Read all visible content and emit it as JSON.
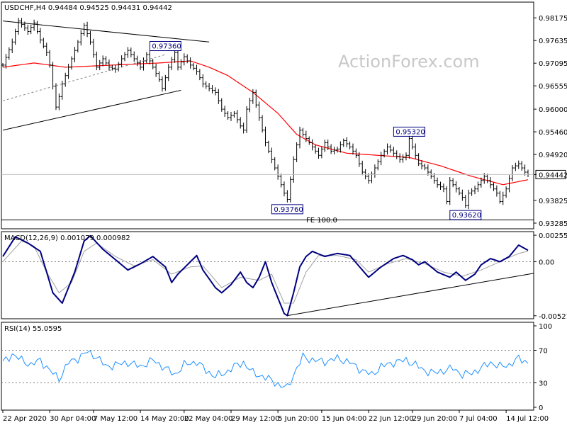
{
  "header": {
    "symbol_line": "USDCHF,H4  0.94484 0.94525 0.94431 0.94442",
    "watermark": "ActionForex.com"
  },
  "colors": {
    "background": "#ffffff",
    "price_bars": "#000000",
    "moving_average": "#ff0000",
    "trendlines": "#000000",
    "macd_line": "#000080",
    "macd_signal": "#a0a0a0",
    "rsi_line": "#1e90ff",
    "level_box_border": "#000080",
    "grid_dashed": "#808080"
  },
  "chart_data": [
    {
      "type": "ohlc",
      "name": "price",
      "title": "USDCHF,H4",
      "ohlc_readout": {
        "open": 0.94484,
        "high": 0.94525,
        "low": 0.94431,
        "close": 0.94442
      },
      "current_price_label": "0.94442",
      "y_ticks": [
        "0.98175",
        "0.97635",
        "0.97095",
        "0.96555",
        "0.96000",
        "0.95460",
        "0.94920",
        "0.94442",
        "0.93825",
        "0.93285"
      ],
      "ylim": [
        0.9315,
        0.9855
      ],
      "x_tick_labels": [
        "22 Apr 2020",
        "30 Apr 04:00",
        "7 May 12:00",
        "14 May 20:00",
        "22 May 04:00",
        "29 May 12:00",
        "5 Jun 20:00",
        "15 Jun 04:00",
        "22 Jun 12:00",
        "29 Jun 20:00",
        "7 Jul 04:00",
        "14 Jul 12:00"
      ],
      "path_anchors": [
        [
          0,
          0.9705
        ],
        [
          3,
          0.976
        ],
        [
          5,
          0.981
        ],
        [
          8,
          0.9785
        ],
        [
          10,
          0.9805
        ],
        [
          12,
          0.9765
        ],
        [
          14,
          0.9735
        ],
        [
          15,
          0.9705
        ],
        [
          16,
          0.9655
        ],
        [
          17,
          0.9605
        ],
        [
          18,
          0.963
        ],
        [
          19,
          0.966
        ],
        [
          21,
          0.97
        ],
        [
          23,
          0.974
        ],
        [
          25,
          0.978
        ],
        [
          26,
          0.98
        ],
        [
          28,
          0.976
        ],
        [
          30,
          0.97
        ],
        [
          32,
          0.972
        ],
        [
          34,
          0.97
        ],
        [
          36,
          0.9695
        ],
        [
          38,
          0.972
        ],
        [
          40,
          0.974
        ],
        [
          42,
          0.972
        ],
        [
          44,
          0.97
        ],
        [
          46,
          0.973
        ],
        [
          48,
          0.97
        ],
        [
          50,
          0.967
        ],
        [
          51,
          0.965
        ],
        [
          53,
          0.97
        ],
        [
          55,
          0.9735
        ],
        [
          56,
          0.97
        ],
        [
          58,
          0.9725
        ],
        [
          60,
          0.9705
        ],
        [
          62,
          0.969
        ],
        [
          64,
          0.966
        ],
        [
          66,
          0.965
        ],
        [
          68,
          0.964
        ],
        [
          70,
          0.96
        ],
        [
          72,
          0.958
        ],
        [
          74,
          0.959
        ],
        [
          76,
          0.956
        ],
        [
          77,
          0.955
        ],
        [
          78,
          0.96
        ],
        [
          80,
          0.964
        ],
        [
          81,
          0.961
        ],
        [
          82,
          0.958
        ],
        [
          84,
          0.952
        ],
        [
          86,
          0.948
        ],
        [
          88,
          0.944
        ],
        [
          90,
          0.94
        ],
        [
          91,
          0.9385
        ],
        [
          93,
          0.948
        ],
        [
          95,
          0.955
        ],
        [
          97,
          0.953
        ],
        [
          99,
          0.951
        ],
        [
          101,
          0.949
        ],
        [
          103,
          0.952
        ],
        [
          105,
          0.95
        ],
        [
          107,
          0.9505
        ],
        [
          109,
          0.9525
        ],
        [
          111,
          0.951
        ],
        [
          113,
          0.949
        ],
        [
          115,
          0.945
        ],
        [
          117,
          0.943
        ],
        [
          119,
          0.946
        ],
        [
          121,
          0.949
        ],
        [
          123,
          0.951
        ],
        [
          125,
          0.9495
        ],
        [
          127,
          0.948
        ],
        [
          129,
          0.949
        ],
        [
          130,
          0.953
        ],
        [
          131,
          0.951
        ],
        [
          133,
          0.947
        ],
        [
          135,
          0.946
        ],
        [
          137,
          0.944
        ],
        [
          139,
          0.942
        ],
        [
          141,
          0.941
        ],
        [
          142,
          0.938
        ],
        [
          143,
          0.943
        ],
        [
          145,
          0.941
        ],
        [
          147,
          0.939
        ],
        [
          148,
          0.937
        ],
        [
          149,
          0.94
        ],
        [
          151,
          0.941
        ],
        [
          153,
          0.943
        ],
        [
          154,
          0.944
        ],
        [
          156,
          0.942
        ],
        [
          158,
          0.94
        ],
        [
          159,
          0.938
        ],
        [
          161,
          0.941
        ],
        [
          163,
          0.946
        ],
        [
          165,
          0.947
        ],
        [
          167,
          0.945
        ],
        [
          168,
          0.9444
        ]
      ],
      "moving_average_anchors": [
        [
          0,
          0.97
        ],
        [
          10,
          0.971
        ],
        [
          20,
          0.97
        ],
        [
          35,
          0.9705
        ],
        [
          50,
          0.971
        ],
        [
          60,
          0.9715
        ],
        [
          66,
          0.97
        ],
        [
          72,
          0.968
        ],
        [
          80,
          0.964
        ],
        [
          88,
          0.959
        ],
        [
          94,
          0.954
        ],
        [
          100,
          0.9515
        ],
        [
          110,
          0.9495
        ],
        [
          120,
          0.949
        ],
        [
          130,
          0.9485
        ],
        [
          140,
          0.9465
        ],
        [
          150,
          0.944
        ],
        [
          160,
          0.942
        ],
        [
          168,
          0.9432
        ]
      ],
      "trendlines": [
        {
          "from": [
            0,
            0.981
          ],
          "to": [
            66,
            0.976
          ]
        },
        {
          "from": [
            0,
            0.955
          ],
          "to": [
            57,
            0.9645
          ]
        },
        {
          "from": [
            0,
            0.962
          ],
          "to": [
            52,
            0.973
          ],
          "dashed": true
        }
      ],
      "level_labels": [
        {
          "text": "0.97360",
          "x": 52,
          "y": 0.9736
        },
        {
          "text": "0.93760",
          "x": 91,
          "y": 0.9376
        },
        {
          "text": "0.95320",
          "x": 130,
          "y": 0.9532
        },
        {
          "text": "0.93620",
          "x": 148,
          "y": 0.9362
        }
      ],
      "fe_label": "FE 100.0",
      "fe_level": 0.9336
    },
    {
      "type": "line",
      "name": "macd",
      "title": "MACD(12,26,9) 0.001079 0.000982",
      "params": [
        12,
        26,
        9
      ],
      "values_readout": [
        0.001079,
        0.000982
      ],
      "y_ticks": [
        "0.002553",
        "0.00",
        "-0.005212"
      ],
      "ylim": [
        -0.0055,
        0.0029
      ],
      "series": [
        {
          "name": "MACD",
          "anchors": [
            [
              0,
              0.0005
            ],
            [
              4,
              0.0024
            ],
            [
              8,
              0.0018
            ],
            [
              12,
              0.001
            ],
            [
              16,
              -0.003
            ],
            [
              19,
              -0.004
            ],
            [
              23,
              -0.001
            ],
            [
              26,
              0.002
            ],
            [
              28,
              0.0025
            ],
            [
              32,
              0.0012
            ],
            [
              36,
              0.0002
            ],
            [
              40,
              -0.0008
            ],
            [
              44,
              -0.0002
            ],
            [
              48,
              0.0005
            ],
            [
              52,
              -0.0005
            ],
            [
              54,
              -0.002
            ],
            [
              56,
              -0.0012
            ],
            [
              60,
              0.0
            ],
            [
              62,
              0.0006
            ],
            [
              64,
              -0.0008
            ],
            [
              68,
              -0.0025
            ],
            [
              70,
              -0.003
            ],
            [
              73,
              -0.0022
            ],
            [
              76,
              -0.001
            ],
            [
              78,
              -0.002
            ],
            [
              80,
              -0.0025
            ],
            [
              82,
              -0.0015
            ],
            [
              84,
              0.0
            ],
            [
              86,
              -0.002
            ],
            [
              88,
              -0.0035
            ],
            [
              90,
              -0.005
            ],
            [
              91,
              -0.0052
            ],
            [
              93,
              -0.003
            ],
            [
              95,
              -0.0005
            ],
            [
              97,
              0.0005
            ],
            [
              99,
              0.001
            ],
            [
              103,
              0.0005
            ],
            [
              107,
              0.0008
            ],
            [
              111,
              0.0006
            ],
            [
              115,
              -0.0008
            ],
            [
              117,
              -0.0015
            ],
            [
              121,
              -0.0005
            ],
            [
              125,
              0.0003
            ],
            [
              128,
              0.0006
            ],
            [
              131,
              0.0002
            ],
            [
              133,
              -0.0003
            ],
            [
              135,
              0.0
            ],
            [
              139,
              -0.001
            ],
            [
              143,
              -0.0015
            ],
            [
              145,
              -0.001
            ],
            [
              148,
              -0.0018
            ],
            [
              151,
              -0.0012
            ],
            [
              153,
              -0.0003
            ],
            [
              156,
              0.0003
            ],
            [
              159,
              0.0
            ],
            [
              162,
              0.0005
            ],
            [
              165,
              0.0016
            ],
            [
              168,
              0.0011
            ]
          ]
        },
        {
          "name": "Signal",
          "anchors": [
            [
              0,
              0.0
            ],
            [
              6,
              0.002
            ],
            [
              10,
              0.0015
            ],
            [
              14,
              -0.001
            ],
            [
              18,
              -0.003
            ],
            [
              22,
              -0.002
            ],
            [
              26,
              0.001
            ],
            [
              30,
              0.0018
            ],
            [
              36,
              0.0005
            ],
            [
              42,
              -0.0004
            ],
            [
              48,
              0.0002
            ],
            [
              54,
              -0.0012
            ],
            [
              60,
              -0.0005
            ],
            [
              64,
              -0.0004
            ],
            [
              70,
              -0.0025
            ],
            [
              76,
              -0.0015
            ],
            [
              82,
              -0.0018
            ],
            [
              86,
              -0.0012
            ],
            [
              90,
              -0.004
            ],
            [
              93,
              -0.004
            ],
            [
              97,
              -0.001
            ],
            [
              101,
              0.0006
            ],
            [
              107,
              0.0006
            ],
            [
              113,
              0.0002
            ],
            [
              117,
              -0.001
            ],
            [
              123,
              -0.0002
            ],
            [
              129,
              0.0003
            ],
            [
              135,
              -0.0002
            ],
            [
              141,
              -0.001
            ],
            [
              147,
              -0.0014
            ],
            [
              153,
              -0.0008
            ],
            [
              159,
              0.0
            ],
            [
              165,
              0.0008
            ],
            [
              168,
              0.001
            ]
          ]
        }
      ],
      "trendline": {
        "from": [
          91,
          -0.0052
        ],
        "to": [
          168,
          -0.0018
        ]
      }
    },
    {
      "type": "line",
      "name": "rsi",
      "title": "RSI(14) 55.0595",
      "period": 14,
      "value_readout": 55.0595,
      "y_ticks": [
        "100",
        "70",
        "30",
        "0"
      ],
      "ylim": [
        0,
        100
      ],
      "levels": [
        70,
        30
      ],
      "series": [
        {
          "name": "RSI",
          "anchors": [
            [
              0,
              55
            ],
            [
              3,
              65
            ],
            [
              6,
              58
            ],
            [
              9,
              52
            ],
            [
              12,
              58
            ],
            [
              15,
              45
            ],
            [
              18,
              35
            ],
            [
              21,
              55
            ],
            [
              24,
              60
            ],
            [
              27,
              68
            ],
            [
              30,
              62
            ],
            [
              33,
              50
            ],
            [
              36,
              52
            ],
            [
              40,
              55
            ],
            [
              44,
              50
            ],
            [
              48,
              58
            ],
            [
              52,
              48
            ],
            [
              55,
              40
            ],
            [
              58,
              52
            ],
            [
              62,
              56
            ],
            [
              65,
              45
            ],
            [
              68,
              38
            ],
            [
              71,
              42
            ],
            [
              74,
              50
            ],
            [
              77,
              55
            ],
            [
              80,
              42
            ],
            [
              83,
              38
            ],
            [
              86,
              33
            ],
            [
              89,
              26
            ],
            [
              91,
              24
            ],
            [
              93,
              40
            ],
            [
              96,
              62
            ],
            [
              99,
              58
            ],
            [
              103,
              56
            ],
            [
              107,
              60
            ],
            [
              111,
              55
            ],
            [
              115,
              45
            ],
            [
              118,
              40
            ],
            [
              121,
              50
            ],
            [
              125,
              55
            ],
            [
              129,
              58
            ],
            [
              132,
              52
            ],
            [
              135,
              45
            ],
            [
              138,
              42
            ],
            [
              141,
              45
            ],
            [
              144,
              48
            ],
            [
              147,
              40
            ],
            [
              150,
              42
            ],
            [
              153,
              48
            ],
            [
              156,
              55
            ],
            [
              159,
              50
            ],
            [
              162,
              52
            ],
            [
              165,
              60
            ],
            [
              168,
              55
            ]
          ]
        }
      ]
    }
  ]
}
